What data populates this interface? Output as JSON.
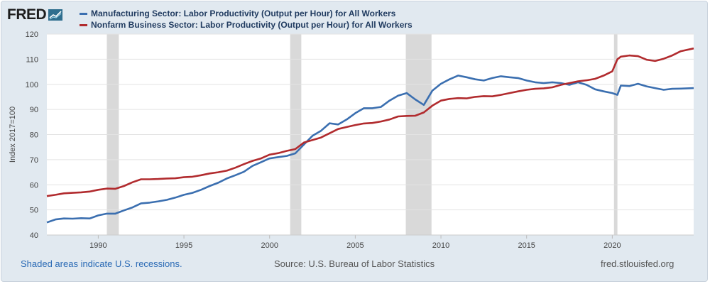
{
  "header": {
    "logo_text": "FRED",
    "logo_icon": "line-chart-icon"
  },
  "footer": {
    "recession_note": "Shaded areas indicate U.S. recessions.",
    "source": "Source: U.S. Bureau of Labor Statistics",
    "site": "fred.stlouisfed.org"
  },
  "colors": {
    "manufacturing": "#3b6fb0",
    "nonfarm": "#b12b2e",
    "recession_band": "#d9d9d9",
    "plot_background": "#ffffff",
    "frame_background": "#e1e9f0"
  },
  "chart_data": {
    "type": "line",
    "title": "",
    "xlabel": "",
    "ylabel": "Index 2017=100",
    "xlim": [
      1987.0,
      2024.75
    ],
    "ylim": [
      40,
      120
    ],
    "y_ticks": [
      40,
      50,
      60,
      70,
      80,
      90,
      100,
      110,
      120
    ],
    "x_ticks": [
      1990,
      1995,
      2000,
      2005,
      2010,
      2015,
      2020
    ],
    "grid": true,
    "legend_position": "top",
    "recessions": [
      [
        1990.5,
        1991.2
      ],
      [
        2001.2,
        2001.85
      ],
      [
        2007.95,
        2009.45
      ],
      [
        2020.1,
        2020.3
      ]
    ],
    "series": [
      {
        "name": "Manufacturing Sector: Labor Productivity (Output per Hour) for All Workers",
        "color": "#3b6fb0",
        "points": [
          [
            1987,
            45
          ],
          [
            1987.5,
            46.2
          ],
          [
            1988,
            46.6
          ],
          [
            1988.5,
            46.5
          ],
          [
            1989,
            46.7
          ],
          [
            1989.5,
            46.6
          ],
          [
            1990,
            47.8
          ],
          [
            1990.5,
            48.5
          ],
          [
            1991,
            48.5
          ],
          [
            1991.5,
            49.8
          ],
          [
            1992,
            51
          ],
          [
            1992.5,
            52.6
          ],
          [
            1993,
            52.9
          ],
          [
            1993.5,
            53.4
          ],
          [
            1994,
            54
          ],
          [
            1994.5,
            54.9
          ],
          [
            1995,
            56
          ],
          [
            1995.5,
            56.8
          ],
          [
            1996,
            58
          ],
          [
            1996.5,
            59.5
          ],
          [
            1997,
            60.8
          ],
          [
            1997.5,
            62.5
          ],
          [
            1998,
            63.8
          ],
          [
            1998.5,
            65.2
          ],
          [
            1999,
            67.5
          ],
          [
            1999.5,
            69
          ],
          [
            2000,
            70.5
          ],
          [
            2000.5,
            71
          ],
          [
            2001,
            71.5
          ],
          [
            2001.5,
            72.5
          ],
          [
            2002,
            76
          ],
          [
            2002.5,
            79.5
          ],
          [
            2003,
            81.5
          ],
          [
            2003.5,
            84.5
          ],
          [
            2004,
            84
          ],
          [
            2004.5,
            86
          ],
          [
            2005,
            88.5
          ],
          [
            2005.5,
            90.5
          ],
          [
            2006,
            90.5
          ],
          [
            2006.5,
            91
          ],
          [
            2007,
            93.5
          ],
          [
            2007.5,
            95.5
          ],
          [
            2008,
            96.5
          ],
          [
            2008.5,
            94
          ],
          [
            2009,
            91.8
          ],
          [
            2009.5,
            97.5
          ],
          [
            2010,
            100.2
          ],
          [
            2010.5,
            102
          ],
          [
            2011,
            103.5
          ],
          [
            2011.5,
            102.8
          ],
          [
            2012,
            102
          ],
          [
            2012.5,
            101.5
          ],
          [
            2013,
            102.5
          ],
          [
            2013.5,
            103.2
          ],
          [
            2014,
            102.8
          ],
          [
            2014.5,
            102.5
          ],
          [
            2015,
            101.5
          ],
          [
            2015.5,
            100.8
          ],
          [
            2016,
            100.5
          ],
          [
            2016.5,
            100.8
          ],
          [
            2017,
            100.5
          ],
          [
            2017.5,
            99.8
          ],
          [
            2018,
            100.8
          ],
          [
            2018.5,
            99.8
          ],
          [
            2019,
            98
          ],
          [
            2019.5,
            97.2
          ],
          [
            2020,
            96.5
          ],
          [
            2020.3,
            95.8
          ],
          [
            2020.5,
            99.5
          ],
          [
            2021,
            99.3
          ],
          [
            2021.5,
            100.2
          ],
          [
            2022,
            99.2
          ],
          [
            2022.5,
            98.5
          ],
          [
            2023,
            97.8
          ],
          [
            2023.5,
            98.2
          ],
          [
            2024,
            98.3
          ],
          [
            2024.75,
            98.5
          ]
        ]
      },
      {
        "name": "Nonfarm Business Sector: Labor Productivity (Output per Hour) for All Workers",
        "color": "#b12b2e",
        "points": [
          [
            1987,
            55.5
          ],
          [
            1987.5,
            56
          ],
          [
            1988,
            56.6
          ],
          [
            1988.5,
            56.8
          ],
          [
            1989,
            57
          ],
          [
            1989.5,
            57.3
          ],
          [
            1990,
            58
          ],
          [
            1990.5,
            58.5
          ],
          [
            1991,
            58.4
          ],
          [
            1991.5,
            59.5
          ],
          [
            1992,
            61
          ],
          [
            1992.5,
            62.2
          ],
          [
            1993,
            62.2
          ],
          [
            1993.5,
            62.3
          ],
          [
            1994,
            62.5
          ],
          [
            1994.5,
            62.6
          ],
          [
            1995,
            63
          ],
          [
            1995.5,
            63.2
          ],
          [
            1996,
            63.8
          ],
          [
            1996.5,
            64.5
          ],
          [
            1997,
            65
          ],
          [
            1997.5,
            65.6
          ],
          [
            1998,
            66.8
          ],
          [
            1998.5,
            68.2
          ],
          [
            1999,
            69.5
          ],
          [
            1999.5,
            70.5
          ],
          [
            2000,
            72
          ],
          [
            2000.5,
            72.6
          ],
          [
            2001,
            73.5
          ],
          [
            2001.5,
            74.2
          ],
          [
            2002,
            76.8
          ],
          [
            2002.5,
            77.8
          ],
          [
            2003,
            78.8
          ],
          [
            2003.5,
            80.5
          ],
          [
            2004,
            82.2
          ],
          [
            2004.5,
            83
          ],
          [
            2005,
            83.8
          ],
          [
            2005.5,
            84.4
          ],
          [
            2006,
            84.6
          ],
          [
            2006.5,
            85.2
          ],
          [
            2007,
            86
          ],
          [
            2007.5,
            87.2
          ],
          [
            2008,
            87.4
          ],
          [
            2008.5,
            87.5
          ],
          [
            2009,
            88.8
          ],
          [
            2009.5,
            91.5
          ],
          [
            2010,
            93.5
          ],
          [
            2010.5,
            94.2
          ],
          [
            2011,
            94.5
          ],
          [
            2011.5,
            94.4
          ],
          [
            2012,
            95
          ],
          [
            2012.5,
            95.3
          ],
          [
            2013,
            95.2
          ],
          [
            2013.5,
            95.8
          ],
          [
            2014,
            96.5
          ],
          [
            2014.5,
            97.2
          ],
          [
            2015,
            97.8
          ],
          [
            2015.5,
            98.2
          ],
          [
            2016,
            98.4
          ],
          [
            2016.5,
            98.8
          ],
          [
            2017,
            99.8
          ],
          [
            2017.5,
            100.5
          ],
          [
            2018,
            101.2
          ],
          [
            2018.5,
            101.6
          ],
          [
            2019,
            102.2
          ],
          [
            2019.5,
            103.5
          ],
          [
            2020,
            105.2
          ],
          [
            2020.3,
            110
          ],
          [
            2020.5,
            111
          ],
          [
            2021,
            111.5
          ],
          [
            2021.5,
            111.2
          ],
          [
            2022,
            109.8
          ],
          [
            2022.5,
            109.3
          ],
          [
            2023,
            110.2
          ],
          [
            2023.5,
            111.5
          ],
          [
            2024,
            113.2
          ],
          [
            2024.75,
            114.3
          ]
        ]
      }
    ]
  }
}
